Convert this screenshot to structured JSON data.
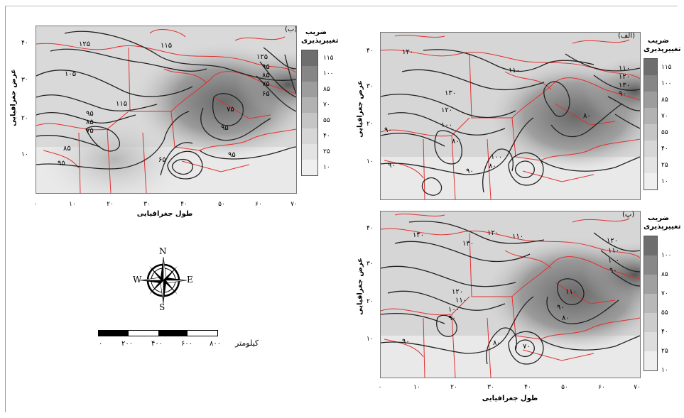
{
  "legend_title_line1": "ضریب",
  "legend_title_line2": "تغییرپذیری",
  "x_axis_label": "طول جغرافیایی",
  "y_axis_label": "عرض جغرافیایی",
  "x_ticks": [
    "۰",
    "۱۰",
    "۲۰",
    "۳۰",
    "۴۰",
    "۵۰",
    "۶۰",
    "۷۰"
  ],
  "y_ticks": [
    "۱۰",
    "۲۰",
    "۳۰",
    "۴۰"
  ],
  "legend_values_a": [
    "۱۱۵",
    "۱۰۰",
    "۸۵",
    "۷۰",
    "۵۵",
    "۴۰",
    "۲۵",
    "۱۰"
  ],
  "legend_values_c": [
    "۱۰۰",
    "۸۵",
    "۷۰",
    "۵۵",
    "۴۰",
    "۲۵",
    "۱۰"
  ],
  "panel_left_label": "(ب)",
  "panel_right_top_label": "(الف)",
  "panel_right_bottom_label": "(پ)",
  "compass": {
    "n": "N",
    "s": "S",
    "e": "E",
    "w": "W"
  },
  "scale": {
    "unit": "کیلومتر",
    "labels": [
      "۰",
      "۲۰۰",
      "۴۰۰",
      "۶۰۰",
      "۸۰۰"
    ]
  },
  "contours_left": [
    "۱۲۵",
    "۱۱۵",
    "۱۲۵",
    "۱۰۵",
    "۹۵",
    "۸۵",
    "۷۵",
    "۶۵",
    "۱۱۵",
    "۹۵",
    "۸۵",
    "۷۵",
    "۹۵",
    "۹۵",
    "۷۵",
    "۸۵",
    "۶۵",
    "۹۵",
    "۱۰۵"
  ],
  "contours_right_top": [
    "۱۲۰",
    "۱۳۰",
    "۱۱۰",
    "۱۲۰",
    "۱۰۰",
    "۹۰",
    "۸۰",
    "۹۰",
    "۱۰۰",
    "۸۰",
    "۱۱۰",
    "۱۲۰",
    "۱۳۰",
    "۹۰",
    "۸۰",
    "۹۰"
  ],
  "contours_right_bottom": [
    "۱۴۰",
    "۱۳۰",
    "۱۲۰",
    "۱۱۰",
    "۱۲۰",
    "۱۱۰",
    "۹۰",
    "۱۰۰",
    "۹۰",
    "۸۰",
    "۷۰",
    "۱۱۰",
    "۹۰",
    "۸۰",
    "۱۲۰",
    "۱۱۰",
    "۱۰۰",
    "۹۰"
  ],
  "colors": {
    "contour": "#222222",
    "borders": "#e03030",
    "shade_light": "#e6e6e6",
    "shade_dark": "#6e6e6e"
  }
}
